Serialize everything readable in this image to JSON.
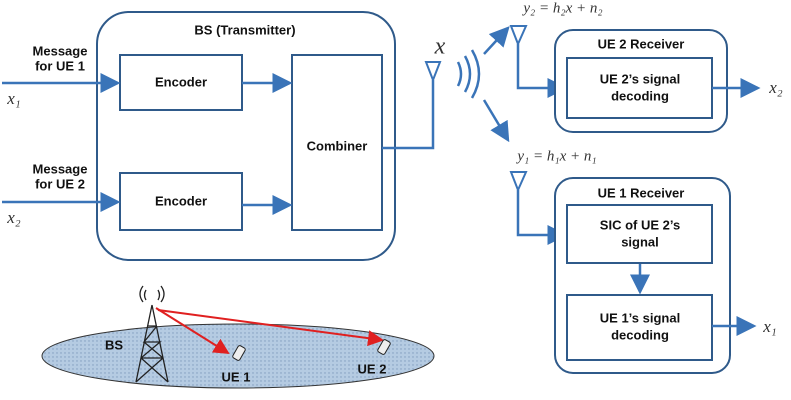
{
  "bs": {
    "title": "BS (Transmitter)",
    "encoders": [
      "Encoder",
      "Encoder"
    ],
    "combiner": "Combiner"
  },
  "inputs": [
    {
      "message": [
        "Message",
        "for UE 1"
      ],
      "symbol": "x₁"
    },
    {
      "message": [
        "Message",
        "for UE 2"
      ],
      "symbol": "x₂"
    }
  ],
  "transmitted": "x",
  "signals": [
    "y₂ = h₂x + n₂",
    "y₁ = h₁x + n₁"
  ],
  "ue2_receiver": {
    "title": "UE 2 Receiver",
    "block": [
      "UE 2’s signal",
      "decoding"
    ],
    "output": "x₂"
  },
  "ue1_receiver": {
    "title": "UE 1 Receiver",
    "blocks": [
      [
        "SIC of UE 2’s",
        "signal"
      ],
      [
        "UE 1’s signal",
        "decoding"
      ]
    ],
    "output": "x₁"
  },
  "scene": {
    "bs": "BS",
    "ue1": "UE 1",
    "ue2": "UE 2"
  }
}
